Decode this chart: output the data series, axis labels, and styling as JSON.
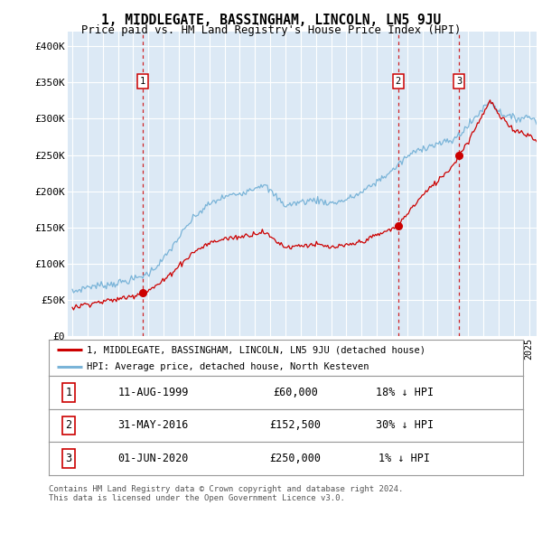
{
  "title": "1, MIDDLEGATE, BASSINGHAM, LINCOLN, LN5 9JU",
  "subtitle": "Price paid vs. HM Land Registry's House Price Index (HPI)",
  "ylim": [
    0,
    420000
  ],
  "yticks": [
    0,
    50000,
    100000,
    150000,
    200000,
    250000,
    300000,
    350000,
    400000
  ],
  "ytick_labels": [
    "£0",
    "£50K",
    "£100K",
    "£150K",
    "£200K",
    "£250K",
    "£300K",
    "£350K",
    "£400K"
  ],
  "xlim_start": 1994.7,
  "xlim_end": 2025.5,
  "background_color": "#dce9f5",
  "grid_color": "#ffffff",
  "sale_dates": [
    1999.61,
    2016.41,
    2020.42
  ],
  "sale_prices": [
    60000,
    152500,
    250000
  ],
  "sale_labels": [
    "1",
    "2",
    "3"
  ],
  "legend_label_red": "1, MIDDLEGATE, BASSINGHAM, LINCOLN, LN5 9JU (detached house)",
  "legend_label_blue": "HPI: Average price, detached house, North Kesteven",
  "table_data": [
    [
      "1",
      "11-AUG-1999",
      "£60,000",
      "18% ↓ HPI"
    ],
    [
      "2",
      "31-MAY-2016",
      "£152,500",
      "30% ↓ HPI"
    ],
    [
      "3",
      "01-JUN-2020",
      "£250,000",
      "1% ↓ HPI"
    ]
  ],
  "footer": "Contains HM Land Registry data © Crown copyright and database right 2024.\nThis data is licensed under the Open Government Licence v3.0.",
  "red_color": "#cc0000",
  "blue_color": "#7ab4d8"
}
